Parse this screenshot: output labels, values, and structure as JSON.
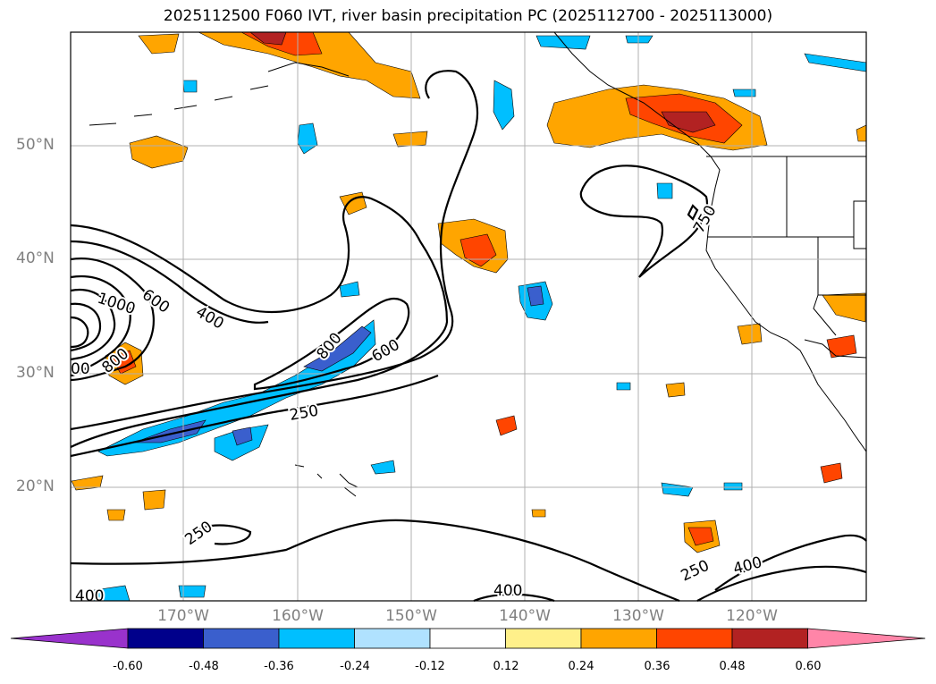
{
  "title": "2025112500 F060 IVT, river basin precipitation PC (2025112700 - 2025113000)",
  "lat_labels": [
    "50°N",
    "40°N",
    "30°N",
    "20°N"
  ],
  "lon_labels": [
    "170°W",
    "160°W",
    "150°W",
    "140°W",
    "130°W",
    "120°W"
  ],
  "contour_labels": [
    "1000",
    "600",
    "400",
    "800",
    "600",
    "800",
    "600",
    "250",
    "400",
    "250",
    "250",
    "400",
    "400",
    "750",
    "00"
  ],
  "colorbar": {
    "ticks": [
      "-0.60",
      "-0.48",
      "-0.36",
      "-0.24",
      "-0.12",
      "0.12",
      "0.24",
      "0.36",
      "0.48",
      "0.60"
    ],
    "colors": [
      "#9932cc",
      "#00008b",
      "#3a5fcd",
      "#00bfff",
      "#b0e2ff",
      "#ffffff",
      "#fff08a",
      "#ffa500",
      "#ff4500",
      "#b22222",
      "#ff85a8"
    ]
  }
}
